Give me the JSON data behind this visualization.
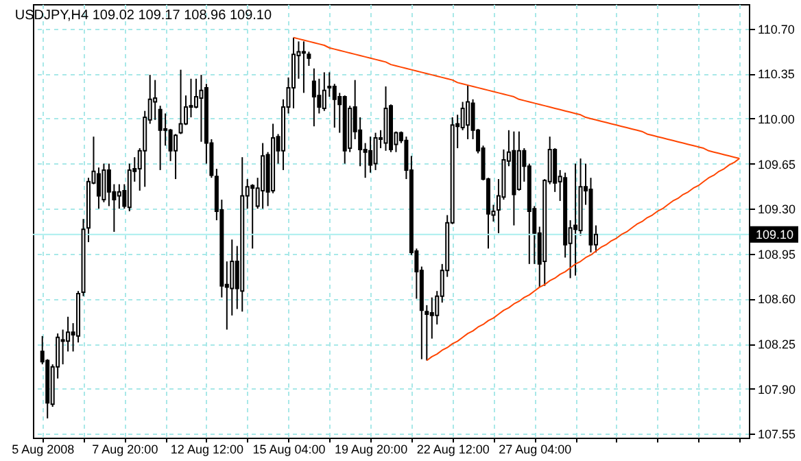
{
  "chart_data": {
    "type": "candlestick",
    "title": "USDJPY,H4 109.02 109.17 108.96 109.10",
    "categories": [
      "5 Aug 2008",
      null,
      null,
      null,
      null,
      null,
      null,
      null,
      null,
      null,
      null,
      null,
      null,
      null,
      null,
      null,
      "7 Aug 20:00",
      null,
      null,
      null,
      null,
      null,
      null,
      null,
      null,
      null,
      null,
      null,
      null,
      null,
      null,
      null,
      "12 Aug 12:00",
      null,
      null,
      null,
      null,
      null,
      null,
      null,
      null,
      null,
      null,
      null,
      null,
      null,
      null,
      null,
      "15 Aug 04:00",
      null,
      null,
      null,
      null,
      null,
      null,
      null,
      null,
      null,
      null,
      null,
      null,
      null,
      null,
      null,
      "19 Aug 20:00",
      null,
      null,
      null,
      null,
      null,
      null,
      null,
      null,
      null,
      null,
      null,
      null,
      null,
      null,
      null,
      "22 Aug 12:00",
      null,
      null,
      null,
      null,
      null,
      null,
      null,
      null,
      null,
      null,
      null,
      null,
      null,
      null,
      null,
      "27 Aug 04:00",
      null,
      null,
      null,
      null,
      null,
      null,
      null,
      null,
      null,
      null,
      null,
      null,
      null,
      null,
      null,
      null,
      null,
      null,
      null,
      null,
      null,
      null,
      null,
      null,
      null,
      null,
      null,
      null,
      null,
      null,
      null,
      null,
      null,
      null,
      null,
      null,
      null,
      null,
      null,
      null
    ],
    "ohlc": [
      [
        108.19,
        108.31,
        108.09,
        108.11
      ],
      [
        108.12,
        108.13,
        107.67,
        107.79
      ],
      [
        107.78,
        108.09,
        107.76,
        108.07
      ],
      [
        108.07,
        108.33,
        107.98,
        108.3
      ],
      [
        108.28,
        108.36,
        108.09,
        108.27
      ],
      [
        108.27,
        108.46,
        108.19,
        108.34
      ],
      [
        108.34,
        108.41,
        108.19,
        108.32
      ],
      [
        108.31,
        108.66,
        108.26,
        108.64
      ],
      [
        108.65,
        109.22,
        108.62,
        109.14
      ],
      [
        109.15,
        109.54,
        109.04,
        109.51
      ],
      [
        109.5,
        109.86,
        109.49,
        109.59
      ],
      [
        109.57,
        109.62,
        109.3,
        109.4
      ],
      [
        109.37,
        109.65,
        109.35,
        109.6
      ],
      [
        109.6,
        109.65,
        109.32,
        109.43
      ],
      [
        109.43,
        109.49,
        109.12,
        109.37
      ],
      [
        109.4,
        109.49,
        109.3,
        109.43
      ],
      [
        109.44,
        109.49,
        109.3,
        109.32
      ],
      [
        109.31,
        109.65,
        109.28,
        109.6
      ],
      [
        109.61,
        109.7,
        109.51,
        109.59
      ],
      [
        109.61,
        109.77,
        109.44,
        109.75
      ],
      [
        109.75,
        110.06,
        109.47,
        110.01
      ],
      [
        109.99,
        110.34,
        109.96,
        110.15
      ],
      [
        110.13,
        110.3,
        109.99,
        110.16
      ],
      [
        110.07,
        110.1,
        109.6,
        109.91
      ],
      [
        109.92,
        110.04,
        109.79,
        109.91
      ],
      [
        109.91,
        109.92,
        109.67,
        109.75
      ],
      [
        109.75,
        109.88,
        109.53,
        109.87
      ],
      [
        109.89,
        110.38,
        109.88,
        109.96
      ],
      [
        109.96,
        110.18,
        109.95,
        110.09
      ],
      [
        110.1,
        110.31,
        110.01,
        110.09
      ],
      [
        110.09,
        110.31,
        110.08,
        110.17
      ],
      [
        110.16,
        110.34,
        109.82,
        110.22
      ],
      [
        110.24,
        110.27,
        109.65,
        109.81
      ],
      [
        109.81,
        109.84,
        109.54,
        109.56
      ],
      [
        109.55,
        109.61,
        109.21,
        109.28
      ],
      [
        109.29,
        109.37,
        108.61,
        108.7
      ],
      [
        108.71,
        108.89,
        108.36,
        108.69
      ],
      [
        108.68,
        109.06,
        108.47,
        108.89
      ],
      [
        108.89,
        109.01,
        108.52,
        108.68
      ],
      [
        108.66,
        109.7,
        108.5,
        109.4
      ],
      [
        109.4,
        109.53,
        109.3,
        109.47
      ],
      [
        109.48,
        109.49,
        108.99,
        109.46
      ],
      [
        109.32,
        109.54,
        109.3,
        109.46
      ],
      [
        109.44,
        109.81,
        109.3,
        109.71
      ],
      [
        109.72,
        109.74,
        109.32,
        109.43
      ],
      [
        109.44,
        109.96,
        109.42,
        109.85
      ],
      [
        109.86,
        109.88,
        109.65,
        109.75
      ],
      [
        109.75,
        110.15,
        109.6,
        110.09
      ],
      [
        110.09,
        110.32,
        110.04,
        110.24
      ],
      [
        110.24,
        110.63,
        110.08,
        110.5
      ],
      [
        110.49,
        110.6,
        110.31,
        110.52
      ],
      [
        110.52,
        110.6,
        110.2,
        110.51
      ],
      [
        110.5,
        110.52,
        110.41,
        110.47
      ],
      [
        110.29,
        110.39,
        109.94,
        110.17
      ],
      [
        110.18,
        110.31,
        110.04,
        110.09
      ],
      [
        110.08,
        110.36,
        110.06,
        110.22
      ],
      [
        110.24,
        110.36,
        110.17,
        110.25
      ],
      [
        110.25,
        110.27,
        109.93,
        110.15
      ],
      [
        110.17,
        110.2,
        109.89,
        110.11
      ],
      [
        110.17,
        110.18,
        109.65,
        109.75
      ],
      [
        109.77,
        110.1,
        109.74,
        110.08
      ],
      [
        110.09,
        110.3,
        109.84,
        109.9
      ],
      [
        109.91,
        110.01,
        109.63,
        109.76
      ],
      [
        109.76,
        109.81,
        109.54,
        109.74
      ],
      [
        109.75,
        109.86,
        109.58,
        109.64
      ],
      [
        109.65,
        109.89,
        109.6,
        109.85
      ],
      [
        109.85,
        109.91,
        109.77,
        109.84
      ],
      [
        109.81,
        110.25,
        109.75,
        110.08
      ],
      [
        110.1,
        110.11,
        109.74,
        109.76
      ],
      [
        109.8,
        109.9,
        109.74,
        109.89
      ],
      [
        109.89,
        109.9,
        109.81,
        109.83
      ],
      [
        109.83,
        109.86,
        109.53,
        109.6
      ],
      [
        109.6,
        109.71,
        108.94,
        108.96
      ],
      [
        108.97,
        108.99,
        108.6,
        108.81
      ],
      [
        108.82,
        108.85,
        108.13,
        108.51
      ],
      [
        108.5,
        108.55,
        108.12,
        108.48
      ],
      [
        108.49,
        108.61,
        108.29,
        108.47
      ],
      [
        108.47,
        108.66,
        108.4,
        108.62
      ],
      [
        108.62,
        108.87,
        108.57,
        108.82
      ],
      [
        108.82,
        109.25,
        108.77,
        109.19
      ],
      [
        109.19,
        110.01,
        109.18,
        109.95
      ],
      [
        109.96,
        110.03,
        109.77,
        109.94
      ],
      [
        109.93,
        110.13,
        109.91,
        110.08
      ],
      [
        109.95,
        110.26,
        109.84,
        110.13
      ],
      [
        110.12,
        110.15,
        109.84,
        109.91
      ],
      [
        109.91,
        109.92,
        109.73,
        109.75
      ],
      [
        109.77,
        109.79,
        109.52,
        109.53
      ],
      [
        109.53,
        109.54,
        108.99,
        109.26
      ],
      [
        109.25,
        109.33,
        109.2,
        109.28
      ],
      [
        109.29,
        109.53,
        109.11,
        109.4
      ],
      [
        109.39,
        109.76,
        109.37,
        109.68
      ],
      [
        109.67,
        109.91,
        109.63,
        109.74
      ],
      [
        109.75,
        109.9,
        109.17,
        109.41
      ],
      [
        109.45,
        109.9,
        109.44,
        109.75
      ],
      [
        109.75,
        109.77,
        109.51,
        109.63
      ],
      [
        109.63,
        109.65,
        108.87,
        109.28
      ],
      [
        109.3,
        109.32,
        108.87,
        109.11
      ],
      [
        109.11,
        109.16,
        108.69,
        108.87
      ],
      [
        108.89,
        109.53,
        108.7,
        109.52
      ],
      [
        109.51,
        109.86,
        109.49,
        109.76
      ],
      [
        109.76,
        109.77,
        109.43,
        109.5
      ],
      [
        109.51,
        109.6,
        109.36,
        109.55
      ],
      [
        109.54,
        109.58,
        108.92,
        109.02
      ],
      [
        109.03,
        109.21,
        108.76,
        109.15
      ],
      [
        109.17,
        109.65,
        108.78,
        109.14
      ],
      [
        109.13,
        109.69,
        109.09,
        109.47
      ],
      [
        109.47,
        109.65,
        109.33,
        109.44
      ],
      [
        109.45,
        109.54,
        108.96,
        109.02
      ],
      [
        109.02,
        109.17,
        108.96,
        109.1
      ],
      null,
      null,
      null,
      null,
      null,
      null,
      null,
      null,
      null,
      null,
      null,
      null,
      null,
      null,
      null,
      null,
      null,
      null,
      null,
      null,
      null,
      null,
      null,
      null,
      null,
      null,
      null,
      null
    ],
    "series": [
      {
        "type": "line",
        "color": "#ff4500",
        "values": [
          null,
          null,
          null,
          null,
          null,
          null,
          null,
          null,
          null,
          null,
          null,
          null,
          null,
          null,
          null,
          null,
          null,
          null,
          null,
          null,
          null,
          null,
          null,
          null,
          null,
          null,
          null,
          null,
          null,
          null,
          null,
          null,
          null,
          null,
          null,
          null,
          null,
          null,
          null,
          null,
          null,
          null,
          null,
          null,
          null,
          null,
          null,
          null,
          null,
          110.63,
          110.62,
          110.61,
          110.6,
          110.59,
          110.58,
          110.57,
          110.55,
          110.54,
          110.53,
          110.52,
          110.51,
          110.5,
          110.49,
          110.48,
          110.47,
          110.46,
          110.45,
          110.44,
          110.42,
          110.41,
          110.4,
          110.39,
          110.38,
          110.37,
          110.36,
          110.35,
          110.34,
          110.33,
          110.32,
          110.31,
          110.3,
          110.28,
          110.27,
          110.26,
          110.25,
          110.24,
          110.23,
          110.22,
          110.21,
          110.2,
          110.19,
          110.18,
          110.17,
          110.15,
          110.14,
          110.13,
          110.12,
          110.11,
          110.1,
          110.09,
          110.08,
          110.07,
          110.06,
          110.05,
          110.04,
          110.03,
          110.01,
          110.0,
          109.99,
          109.98,
          109.97,
          109.96,
          109.95,
          109.94,
          109.93,
          109.92,
          109.91,
          109.9,
          109.88,
          109.87,
          109.86,
          109.85,
          109.84,
          109.83,
          109.82,
          109.81,
          109.8,
          109.79,
          109.78,
          109.77,
          109.75,
          109.74,
          109.73,
          109.72,
          109.71,
          109.7,
          109.69
        ]
      },
      {
        "type": "line",
        "color": "#ff4500",
        "values": [
          null,
          null,
          null,
          null,
          null,
          null,
          null,
          null,
          null,
          null,
          null,
          null,
          null,
          null,
          null,
          null,
          null,
          null,
          null,
          null,
          null,
          null,
          null,
          null,
          null,
          null,
          null,
          null,
          null,
          null,
          null,
          null,
          null,
          null,
          null,
          null,
          null,
          null,
          null,
          null,
          null,
          null,
          null,
          null,
          null,
          null,
          null,
          null,
          null,
          null,
          null,
          null,
          null,
          null,
          null,
          null,
          null,
          null,
          null,
          null,
          null,
          null,
          null,
          null,
          null,
          null,
          null,
          null,
          null,
          null,
          null,
          null,
          null,
          null,
          null,
          108.12,
          108.15,
          108.17,
          108.2,
          108.22,
          108.25,
          108.27,
          108.3,
          108.33,
          108.35,
          108.38,
          108.4,
          108.43,
          108.45,
          108.48,
          108.51,
          108.53,
          108.56,
          108.58,
          108.61,
          108.63,
          108.66,
          108.69,
          108.71,
          108.74,
          108.76,
          108.79,
          108.81,
          108.84,
          108.87,
          108.89,
          108.92,
          108.94,
          108.97,
          109.0,
          109.02,
          109.05,
          109.07,
          109.1,
          109.12,
          109.15,
          109.18,
          109.2,
          109.23,
          109.25,
          109.28,
          109.3,
          109.33,
          109.36,
          109.38,
          109.41,
          109.43,
          109.46,
          109.48,
          109.51,
          109.54,
          109.56,
          109.59,
          109.61,
          109.64,
          109.66,
          109.69
        ]
      }
    ],
    "ylim": [
      107.52,
      110.89
    ],
    "yticks": [
      107.55,
      {
        "value": 107.9,
        "label": "107.90"
      },
      108.25,
      {
        "value": 108.6,
        "label": "108.60"
      },
      108.95,
      {
        "value": 109.3,
        "label": "109.30"
      },
      109.65,
      {
        "value": 110.0,
        "label": "110.00"
      },
      110.35,
      {
        "value": 110.7,
        "label": "110.70"
      }
    ],
    "ref_lines": [
      {
        "axis": "y",
        "value": 109.1,
        "label": "109.10",
        "color": "#aaeeee"
      }
    ],
    "grid": true
  }
}
